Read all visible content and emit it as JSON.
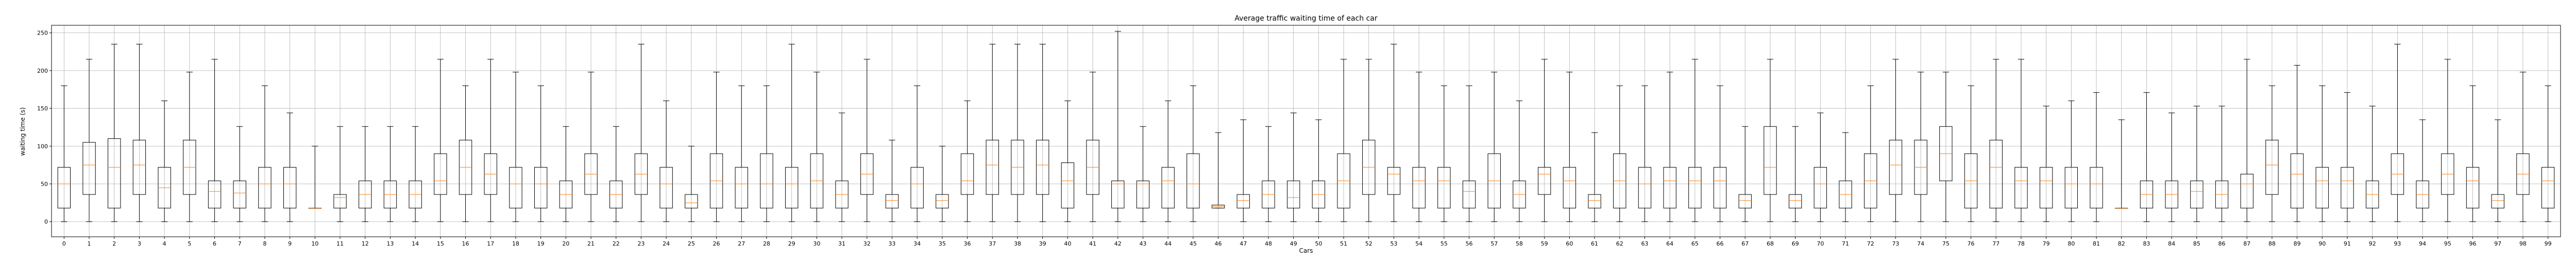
{
  "chart_data": {
    "type": "boxplot",
    "title": "Average traffic waiting time of each car",
    "xlabel": "Cars",
    "ylabel": "waiting time (s)",
    "ylim": [
      -20,
      260
    ],
    "yticks": [
      0,
      50,
      100,
      150,
      200,
      250
    ],
    "grid": true,
    "colors": {
      "box": "#000000",
      "median": "#ff7f0e",
      "grid": "#b0b0b0"
    },
    "categories": [
      "0",
      "1",
      "2",
      "3",
      "4",
      "5",
      "6",
      "7",
      "8",
      "9",
      "10",
      "11",
      "12",
      "13",
      "14",
      "15",
      "16",
      "17",
      "18",
      "19",
      "20",
      "21",
      "22",
      "23",
      "24",
      "25",
      "26",
      "27",
      "28",
      "29",
      "30",
      "31",
      "32",
      "33",
      "34",
      "35",
      "36",
      "37",
      "38",
      "39",
      "40",
      "41",
      "42",
      "43",
      "44",
      "45",
      "46",
      "47",
      "48",
      "49",
      "50",
      "51",
      "52",
      "53",
      "54",
      "55",
      "56",
      "57",
      "58",
      "59",
      "60",
      "61",
      "62",
      "63",
      "64",
      "65",
      "66",
      "67",
      "68",
      "69",
      "70",
      "71",
      "72",
      "73",
      "74",
      "75",
      "76",
      "77",
      "78",
      "79",
      "80",
      "81",
      "82",
      "83",
      "84",
      "85",
      "86",
      "87",
      "88",
      "89",
      "90",
      "91",
      "92",
      "93",
      "94",
      "95",
      "96",
      "97",
      "98",
      "99"
    ],
    "boxes": [
      {
        "whislo": 0,
        "q1": 18,
        "med": 50,
        "q3": 72,
        "whishi": 180
      },
      {
        "whislo": 0,
        "q1": 36,
        "med": 75,
        "q3": 105,
        "whishi": 215
      },
      {
        "whislo": 0,
        "q1": 18,
        "med": 72,
        "q3": 110,
        "whishi": 235
      },
      {
        "whislo": 0,
        "q1": 36,
        "med": 75,
        "q3": 108,
        "whishi": 235
      },
      {
        "whislo": 0,
        "q1": 18,
        "med": 45,
        "q3": 72,
        "whishi": 160
      },
      {
        "whislo": 0,
        "q1": 36,
        "med": 72,
        "q3": 108,
        "whishi": 198
      },
      {
        "whislo": 0,
        "q1": 18,
        "med": 40,
        "q3": 54,
        "whishi": 215
      },
      {
        "whislo": 0,
        "q1": 18,
        "med": 38,
        "q3": 54,
        "whishi": 126
      },
      {
        "whislo": 0,
        "q1": 18,
        "med": 50,
        "q3": 72,
        "whishi": 180
      },
      {
        "whislo": 0,
        "q1": 18,
        "med": 50,
        "q3": 72,
        "whishi": 144
      },
      {
        "whislo": 18,
        "q1": 18,
        "med": 18,
        "q3": 18,
        "whishi": 100
      },
      {
        "whislo": 0,
        "q1": 18,
        "med": 32,
        "q3": 36,
        "whishi": 126
      },
      {
        "whislo": 0,
        "q1": 18,
        "med": 36,
        "q3": 54,
        "whishi": 126
      },
      {
        "whislo": 0,
        "q1": 18,
        "med": 36,
        "q3": 54,
        "whishi": 126
      },
      {
        "whislo": 0,
        "q1": 18,
        "med": 36,
        "q3": 54,
        "whishi": 126
      },
      {
        "whislo": 0,
        "q1": 36,
        "med": 54,
        "q3": 90,
        "whishi": 215
      },
      {
        "whislo": 0,
        "q1": 36,
        "med": 72,
        "q3": 108,
        "whishi": 180
      },
      {
        "whislo": 0,
        "q1": 36,
        "med": 63,
        "q3": 90,
        "whishi": 215
      },
      {
        "whislo": 0,
        "q1": 18,
        "med": 50,
        "q3": 72,
        "whishi": 198
      },
      {
        "whislo": 0,
        "q1": 18,
        "med": 50,
        "q3": 72,
        "whishi": 180
      },
      {
        "whislo": 0,
        "q1": 18,
        "med": 36,
        "q3": 54,
        "whishi": 126
      },
      {
        "whislo": 0,
        "q1": 36,
        "med": 63,
        "q3": 90,
        "whishi": 198
      },
      {
        "whislo": 0,
        "q1": 18,
        "med": 36,
        "q3": 54,
        "whishi": 126
      },
      {
        "whislo": 0,
        "q1": 36,
        "med": 63,
        "q3": 90,
        "whishi": 235
      },
      {
        "whislo": 0,
        "q1": 18,
        "med": 50,
        "q3": 72,
        "whishi": 160
      },
      {
        "whislo": 0,
        "q1": 18,
        "med": 25,
        "q3": 36,
        "whishi": 100
      },
      {
        "whislo": 0,
        "q1": 18,
        "med": 54,
        "q3": 90,
        "whishi": 198
      },
      {
        "whislo": 0,
        "q1": 18,
        "med": 50,
        "q3": 72,
        "whishi": 180
      },
      {
        "whislo": 0,
        "q1": 18,
        "med": 50,
        "q3": 90,
        "whishi": 180
      },
      {
        "whislo": 0,
        "q1": 18,
        "med": 50,
        "q3": 72,
        "whishi": 235
      },
      {
        "whislo": 0,
        "q1": 18,
        "med": 54,
        "q3": 90,
        "whishi": 198
      },
      {
        "whislo": 0,
        "q1": 18,
        "med": 36,
        "q3": 54,
        "whishi": 144
      },
      {
        "whislo": 0,
        "q1": 36,
        "med": 63,
        "q3": 90,
        "whishi": 215
      },
      {
        "whislo": 0,
        "q1": 18,
        "med": 28,
        "q3": 36,
        "whishi": 108
      },
      {
        "whislo": 0,
        "q1": 18,
        "med": 50,
        "q3": 72,
        "whishi": 180
      },
      {
        "whislo": 0,
        "q1": 18,
        "med": 28,
        "q3": 36,
        "whishi": 100
      },
      {
        "whislo": 0,
        "q1": 36,
        "med": 54,
        "q3": 90,
        "whishi": 160
      },
      {
        "whislo": 0,
        "q1": 36,
        "med": 75,
        "q3": 108,
        "whishi": 235
      },
      {
        "whislo": 0,
        "q1": 36,
        "med": 72,
        "q3": 108,
        "whishi": 235
      },
      {
        "whislo": 0,
        "q1": 36,
        "med": 75,
        "q3": 108,
        "whishi": 235
      },
      {
        "whislo": 0,
        "q1": 18,
        "med": 54,
        "q3": 78,
        "whishi": 160
      },
      {
        "whislo": 0,
        "q1": 36,
        "med": 72,
        "q3": 108,
        "whishi": 198
      },
      {
        "whislo": 0,
        "q1": 18,
        "med": 50,
        "q3": 54,
        "whishi": 252
      },
      {
        "whislo": 0,
        "q1": 18,
        "med": 50,
        "q3": 54,
        "whishi": 126
      },
      {
        "whislo": 0,
        "q1": 18,
        "med": 54,
        "q3": 72,
        "whishi": 160
      },
      {
        "whislo": 0,
        "q1": 18,
        "med": 50,
        "q3": 90,
        "whishi": 180
      },
      {
        "whislo": 18,
        "q1": 18,
        "med": 20,
        "q3": 22,
        "whishi": 118
      },
      {
        "whislo": 0,
        "q1": 18,
        "med": 28,
        "q3": 36,
        "whishi": 135
      },
      {
        "whislo": 0,
        "q1": 18,
        "med": 36,
        "q3": 54,
        "whishi": 126
      },
      {
        "whislo": 0,
        "q1": 18,
        "med": 32,
        "q3": 54,
        "whishi": 144
      },
      {
        "whislo": 0,
        "q1": 18,
        "med": 36,
        "q3": 54,
        "whishi": 135
      },
      {
        "whislo": 0,
        "q1": 18,
        "med": 54,
        "q3": 90,
        "whishi": 215
      },
      {
        "whislo": 0,
        "q1": 36,
        "med": 72,
        "q3": 108,
        "whishi": 215
      },
      {
        "whislo": 0,
        "q1": 36,
        "med": 63,
        "q3": 72,
        "whishi": 235
      },
      {
        "whislo": 0,
        "q1": 18,
        "med": 54,
        "q3": 72,
        "whishi": 198
      },
      {
        "whislo": 0,
        "q1": 18,
        "med": 54,
        "q3": 72,
        "whishi": 180
      },
      {
        "whislo": 0,
        "q1": 18,
        "med": 40,
        "q3": 54,
        "whishi": 180
      },
      {
        "whislo": 0,
        "q1": 18,
        "med": 54,
        "q3": 90,
        "whishi": 198
      },
      {
        "whislo": 0,
        "q1": 18,
        "med": 36,
        "q3": 54,
        "whishi": 160
      },
      {
        "whislo": 0,
        "q1": 36,
        "med": 63,
        "q3": 72,
        "whishi": 215
      },
      {
        "whislo": 0,
        "q1": 18,
        "med": 54,
        "q3": 72,
        "whishi": 198
      },
      {
        "whislo": 0,
        "q1": 18,
        "med": 28,
        "q3": 36,
        "whishi": 118
      },
      {
        "whislo": 0,
        "q1": 18,
        "med": 54,
        "q3": 90,
        "whishi": 180
      },
      {
        "whislo": 0,
        "q1": 18,
        "med": 50,
        "q3": 72,
        "whishi": 180
      },
      {
        "whislo": 0,
        "q1": 18,
        "med": 54,
        "q3": 72,
        "whishi": 198
      },
      {
        "whislo": 0,
        "q1": 18,
        "med": 54,
        "q3": 72,
        "whishi": 215
      },
      {
        "whislo": 0,
        "q1": 18,
        "med": 54,
        "q3": 72,
        "whishi": 180
      },
      {
        "whislo": 0,
        "q1": 18,
        "med": 28,
        "q3": 36,
        "whishi": 126
      },
      {
        "whislo": 0,
        "q1": 36,
        "med": 72,
        "q3": 126,
        "whishi": 215
      },
      {
        "whislo": 0,
        "q1": 18,
        "med": 28,
        "q3": 36,
        "whishi": 126
      },
      {
        "whislo": 0,
        "q1": 18,
        "med": 50,
        "q3": 72,
        "whishi": 144
      },
      {
        "whislo": 0,
        "q1": 18,
        "med": 36,
        "q3": 54,
        "whishi": 118
      },
      {
        "whislo": 0,
        "q1": 18,
        "med": 54,
        "q3": 90,
        "whishi": 180
      },
      {
        "whislo": 0,
        "q1": 36,
        "med": 75,
        "q3": 108,
        "whishi": 215
      },
      {
        "whislo": 0,
        "q1": 36,
        "med": 72,
        "q3": 108,
        "whishi": 198
      },
      {
        "whislo": 0,
        "q1": 54,
        "med": 90,
        "q3": 126,
        "whishi": 198
      },
      {
        "whislo": 0,
        "q1": 18,
        "med": 54,
        "q3": 90,
        "whishi": 180
      },
      {
        "whislo": 0,
        "q1": 18,
        "med": 72,
        "q3": 108,
        "whishi": 215
      },
      {
        "whislo": 0,
        "q1": 18,
        "med": 54,
        "q3": 72,
        "whishi": 215
      },
      {
        "whislo": 0,
        "q1": 18,
        "med": 54,
        "q3": 72,
        "whishi": 153
      },
      {
        "whislo": 0,
        "q1": 18,
        "med": 50,
        "q3": 72,
        "whishi": 160
      },
      {
        "whislo": 0,
        "q1": 18,
        "med": 50,
        "q3": 72,
        "whishi": 171
      },
      {
        "whislo": 18,
        "q1": 18,
        "med": 18,
        "q3": 18,
        "whishi": 135
      },
      {
        "whislo": 0,
        "q1": 18,
        "med": 36,
        "q3": 54,
        "whishi": 171
      },
      {
        "whislo": 0,
        "q1": 18,
        "med": 36,
        "q3": 54,
        "whishi": 144
      },
      {
        "whislo": 0,
        "q1": 18,
        "med": 40,
        "q3": 54,
        "whishi": 153
      },
      {
        "whislo": 0,
        "q1": 18,
        "med": 36,
        "q3": 54,
        "whishi": 153
      },
      {
        "whislo": 0,
        "q1": 18,
        "med": 50,
        "q3": 63,
        "whishi": 215
      },
      {
        "whislo": 0,
        "q1": 36,
        "med": 75,
        "q3": 108,
        "whishi": 180
      },
      {
        "whislo": 0,
        "q1": 18,
        "med": 63,
        "q3": 90,
        "whishi": 207
      },
      {
        "whislo": 0,
        "q1": 18,
        "med": 54,
        "q3": 72,
        "whishi": 180
      },
      {
        "whislo": 0,
        "q1": 18,
        "med": 54,
        "q3": 72,
        "whishi": 171
      },
      {
        "whislo": 0,
        "q1": 18,
        "med": 36,
        "q3": 54,
        "whishi": 153
      },
      {
        "whislo": 0,
        "q1": 36,
        "med": 63,
        "q3": 90,
        "whishi": 235
      },
      {
        "whislo": 0,
        "q1": 18,
        "med": 36,
        "q3": 54,
        "whishi": 135
      },
      {
        "whislo": 0,
        "q1": 36,
        "med": 63,
        "q3": 90,
        "whishi": 215
      },
      {
        "whislo": 0,
        "q1": 18,
        "med": 54,
        "q3": 72,
        "whishi": 180
      },
      {
        "whislo": 0,
        "q1": 18,
        "med": 28,
        "q3": 36,
        "whishi": 135
      },
      {
        "whislo": 0,
        "q1": 36,
        "med": 63,
        "q3": 90,
        "whishi": 198
      },
      {
        "whislo": 0,
        "q1": 18,
        "med": 54,
        "q3": 72,
        "whishi": 180
      }
    ]
  }
}
